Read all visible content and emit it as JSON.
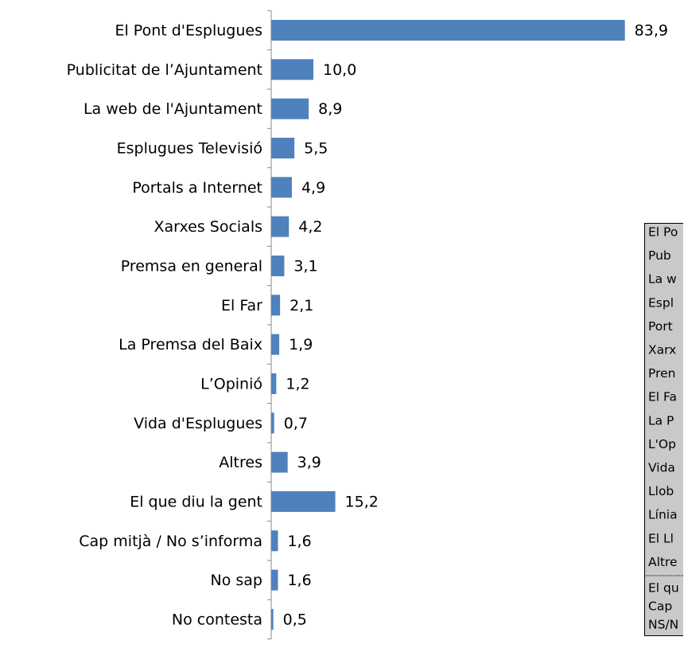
{
  "chart_data": {
    "type": "bar",
    "orientation": "horizontal",
    "categories": [
      "El Pont d'Esplugues",
      "Publicitat de l’Ajuntament",
      "La web de l'Ajuntament",
      "Esplugues Televisió",
      "Portals a Internet",
      "Xarxes Socials",
      "Premsa en general",
      "El Far ",
      "La Premsa del Baix",
      "L’Opinió",
      "Vida d'Esplugues",
      "Altres",
      "El que diu la gent",
      "Cap mitjà / No s’informa",
      "No sap",
      "No contesta"
    ],
    "values": [
      83.9,
      10.0,
      8.9,
      5.5,
      4.9,
      4.2,
      3.1,
      2.1,
      1.9,
      1.2,
      0.7,
      3.9,
      15.2,
      1.6,
      1.6,
      0.5
    ],
    "value_labels": [
      "83,9",
      "10,0",
      "8,9",
      "5,5",
      "4,9",
      "4,2",
      "3,1",
      "2,1",
      "1,9",
      "1,2",
      "0,7",
      "3,9",
      "15,2",
      "1,6",
      "1,6",
      "0,5"
    ],
    "color": "#4f81bd",
    "xlim": [
      0,
      90
    ]
  },
  "side_table": {
    "rows": [
      "El Po",
      "Pub",
      "La w",
      "Espl",
      "Port",
      "Xarx",
      "Pren",
      "El Fa",
      "La P",
      "L'Op",
      "Vida",
      "Llob",
      "Línia",
      "El Ll",
      "Altre"
    ],
    "footer_rows": [
      "El qu",
      "Cap",
      "NS/N"
    ]
  }
}
